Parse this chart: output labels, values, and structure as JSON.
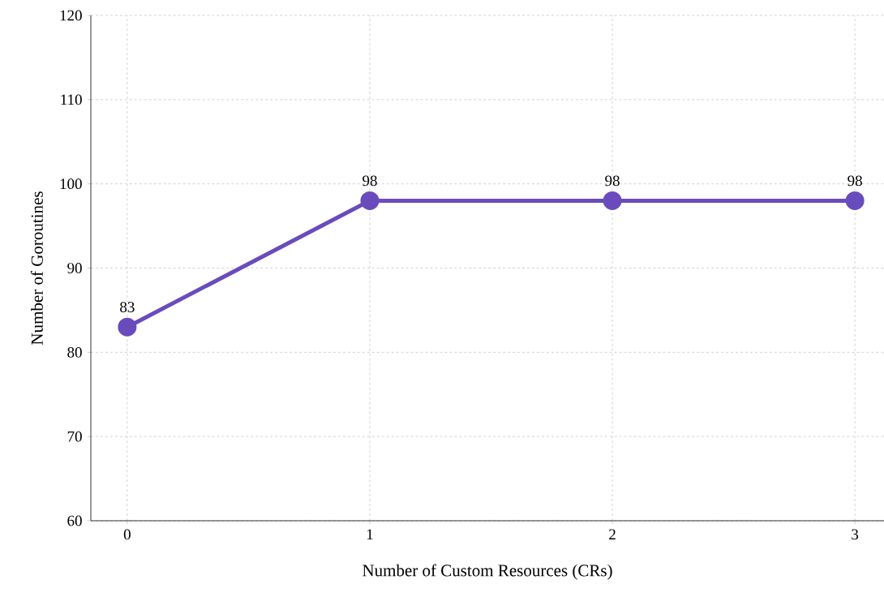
{
  "chart_data": {
    "type": "line",
    "xlabel": "Number of Custom Resources (CRs)",
    "ylabel": "Number of Goroutines",
    "x": [
      0,
      1,
      2,
      3
    ],
    "series": [
      {
        "color": "#6a4bbd",
        "values": [
          83,
          98,
          98,
          98
        ]
      }
    ],
    "xlim": [
      -0.15,
      3.12
    ],
    "xticks": [
      0,
      1,
      2,
      3
    ],
    "ylim": [
      60,
      120
    ],
    "yticks": [
      60,
      70,
      80,
      90,
      100,
      110,
      120
    ],
    "grid": true,
    "marker": "circle",
    "line_style": "solid",
    "data_labels": true
  }
}
